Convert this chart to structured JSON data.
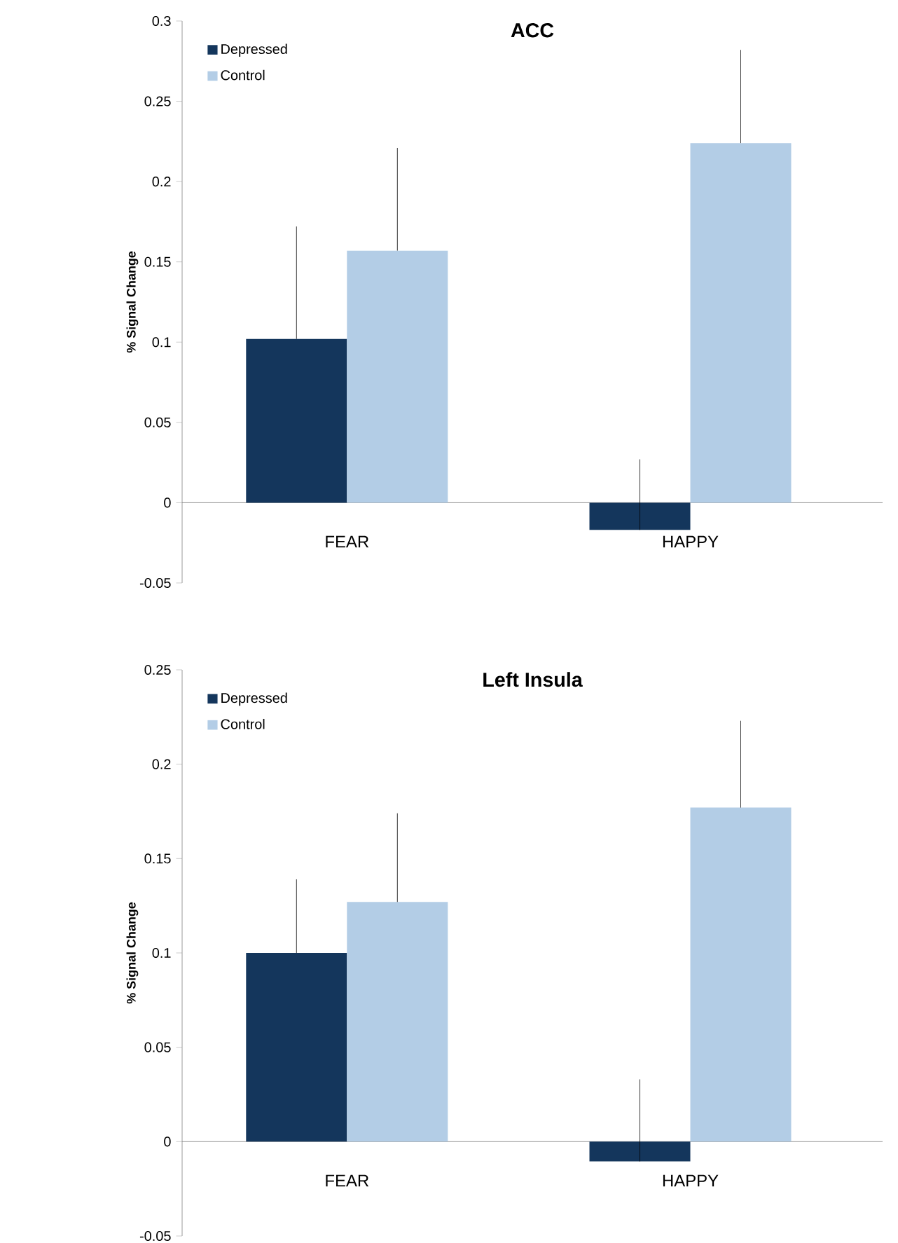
{
  "chart_data": [
    {
      "type": "bar",
      "title": "ACC",
      "ylabel": "% Signal Change",
      "categories": [
        "FEAR",
        "HAPPY"
      ],
      "series": [
        {
          "name": "Depressed",
          "color": "#14365c",
          "values": [
            0.102,
            -0.017
          ],
          "errors": [
            [
              0.102,
              0.172
            ],
            [
              -0.017,
              0.027
            ]
          ]
        },
        {
          "name": "Control",
          "color": "#b3cde6",
          "values": [
            0.157,
            0.224
          ],
          "errors": [
            [
              0.157,
              0.221
            ],
            [
              0.224,
              0.282
            ]
          ]
        }
      ],
      "ylim": [
        -0.05,
        0.3
      ],
      "yticks": [
        -0.05,
        0,
        0.05,
        0.1,
        0.15,
        0.2,
        0.25,
        0.3
      ],
      "legend": "top left",
      "grid": false
    },
    {
      "type": "bar",
      "title": "Left Insula",
      "ylabel": "% Signal Change",
      "categories": [
        "FEAR",
        "HAPPY"
      ],
      "series": [
        {
          "name": "Depressed",
          "color": "#14365c",
          "values": [
            0.1,
            -0.0105
          ],
          "errors": [
            [
              0.1,
              0.139
            ],
            [
              -0.0105,
              0.033
            ]
          ]
        },
        {
          "name": "Control",
          "color": "#b3cde6",
          "values": [
            0.127,
            0.177
          ],
          "errors": [
            [
              0.127,
              0.174
            ],
            [
              0.177,
              0.223
            ]
          ]
        }
      ],
      "ylim": [
        -0.05,
        0.25
      ],
      "yticks": [
        -0.05,
        0,
        0.05,
        0.1,
        0.15,
        0.2,
        0.25
      ],
      "legend": "top left",
      "grid": false
    }
  ]
}
